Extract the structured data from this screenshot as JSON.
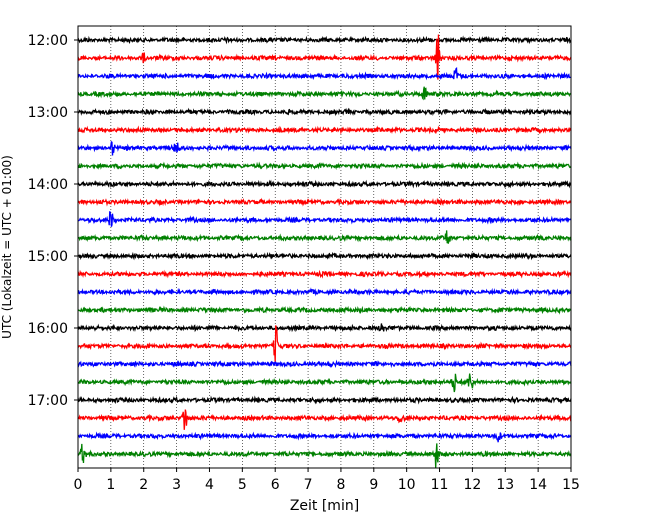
{
  "chart_data": {
    "type": "line",
    "title": "",
    "xlabel": "Zeit  [min]",
    "ylabel": "UTC (Lokalzeit = UTC + 01:00)",
    "xlim": [
      0,
      15
    ],
    "x_ticks": [
      "0",
      "1",
      "2",
      "3",
      "4",
      "5",
      "6",
      "7",
      "8",
      "9",
      "10",
      "11",
      "12",
      "13",
      "14",
      "15"
    ],
    "y_ticks": [
      "12:00",
      "13:00",
      "14:00",
      "15:00",
      "16:00",
      "17:00"
    ],
    "grid": "vertical-dotted",
    "trace_colors": [
      "#000000",
      "#ff0000",
      "#0000ff",
      "#008000"
    ],
    "traces": [
      {
        "start": "12:00",
        "color": "#000000"
      },
      {
        "start": "12:15",
        "color": "#ff0000"
      },
      {
        "start": "12:30",
        "color": "#0000ff"
      },
      {
        "start": "12:45",
        "color": "#008000"
      },
      {
        "start": "13:00",
        "color": "#000000"
      },
      {
        "start": "13:15",
        "color": "#ff0000"
      },
      {
        "start": "13:30",
        "color": "#0000ff"
      },
      {
        "start": "13:45",
        "color": "#008000"
      },
      {
        "start": "14:00",
        "color": "#000000"
      },
      {
        "start": "14:15",
        "color": "#ff0000"
      },
      {
        "start": "14:30",
        "color": "#0000ff"
      },
      {
        "start": "14:45",
        "color": "#008000"
      },
      {
        "start": "15:00",
        "color": "#000000"
      },
      {
        "start": "15:15",
        "color": "#ff0000"
      },
      {
        "start": "15:30",
        "color": "#0000ff"
      },
      {
        "start": "15:45",
        "color": "#008000"
      },
      {
        "start": "16:00",
        "color": "#000000"
      },
      {
        "start": "16:15",
        "color": "#ff0000"
      },
      {
        "start": "16:30",
        "color": "#0000ff"
      },
      {
        "start": "16:45",
        "color": "#008000"
      },
      {
        "start": "17:00",
        "color": "#000000"
      },
      {
        "start": "17:15",
        "color": "#ff0000"
      },
      {
        "start": "17:30",
        "color": "#0000ff"
      },
      {
        "start": "17:45",
        "color": "#008000"
      }
    ],
    "events": [
      {
        "trace": 1,
        "x": 10.95,
        "amp": 3.2
      },
      {
        "trace": 1,
        "x": 2.0,
        "amp": 0.6
      },
      {
        "trace": 2,
        "x": 11.5,
        "amp": 1.0
      },
      {
        "trace": 3,
        "x": 10.55,
        "amp": 1.2
      },
      {
        "trace": 6,
        "x": 3.0,
        "amp": 1.0
      },
      {
        "trace": 6,
        "x": 1.05,
        "amp": 0.8
      },
      {
        "trace": 10,
        "x": 1.0,
        "amp": 1.2
      },
      {
        "trace": 11,
        "x": 11.25,
        "amp": 1.3
      },
      {
        "trace": 16,
        "x": 9.25,
        "amp": 0.9
      },
      {
        "trace": 17,
        "x": 6.02,
        "amp": 2.6
      },
      {
        "trace": 19,
        "x": 11.45,
        "amp": 1.3
      },
      {
        "trace": 19,
        "x": 11.95,
        "amp": 1.4
      },
      {
        "trace": 21,
        "x": 3.25,
        "amp": 1.9
      },
      {
        "trace": 21,
        "x": 9.8,
        "amp": 0.6
      },
      {
        "trace": 22,
        "x": 12.8,
        "amp": 0.6
      },
      {
        "trace": 23,
        "x": 10.9,
        "amp": 1.7
      },
      {
        "trace": 23,
        "x": 0.15,
        "amp": 1.4
      }
    ]
  }
}
